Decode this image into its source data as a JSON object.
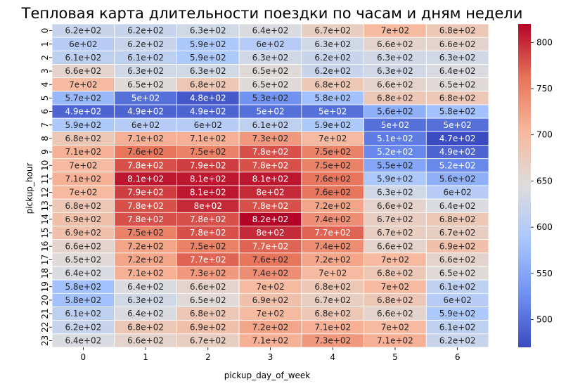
{
  "chart_data": {
    "type": "heatmap",
    "title": "Тепловая карта длительности поездки по часам и дням недели",
    "xlabel": "pickup_day_of_week",
    "ylabel": "pickup_hour",
    "x_categories": [
      "0",
      "1",
      "2",
      "3",
      "4",
      "5",
      "6"
    ],
    "y_categories": [
      "0",
      "1",
      "2",
      "3",
      "4",
      "5",
      "6",
      "7",
      "8",
      "9",
      "10",
      "11",
      "12",
      "13",
      "14",
      "15",
      "16",
      "17",
      "18",
      "19",
      "20",
      "21",
      "22",
      "23"
    ],
    "values": [
      [
        620,
        620,
        630,
        640,
        670,
        700,
        680
      ],
      [
        600,
        620,
        590,
        600,
        630,
        660,
        660
      ],
      [
        610,
        610,
        590,
        630,
        620,
        630,
        630
      ],
      [
        660,
        630,
        630,
        650,
        620,
        630,
        640
      ],
      [
        700,
        650,
        680,
        650,
        680,
        660,
        650
      ],
      [
        570,
        500,
        480,
        530,
        580,
        680,
        680
      ],
      [
        490,
        490,
        490,
        500,
        500,
        560,
        580
      ],
      [
        590,
        600,
        600,
        610,
        590,
        500,
        500
      ],
      [
        680,
        710,
        710,
        730,
        700,
        510,
        470
      ],
      [
        710,
        760,
        750,
        780,
        750,
        520,
        490
      ],
      [
        700,
        780,
        790,
        780,
        750,
        550,
        520
      ],
      [
        710,
        810,
        810,
        810,
        760,
        590,
        560
      ],
      [
        700,
        790,
        810,
        800,
        760,
        630,
        600
      ],
      [
        680,
        780,
        800,
        780,
        720,
        660,
        640
      ],
      [
        690,
        780,
        780,
        820,
        740,
        670,
        680
      ],
      [
        690,
        750,
        780,
        800,
        770,
        670,
        670
      ],
      [
        660,
        720,
        750,
        770,
        740,
        660,
        690
      ],
      [
        650,
        720,
        770,
        760,
        720,
        700,
        660
      ],
      [
        640,
        710,
        730,
        740,
        700,
        680,
        650
      ],
      [
        580,
        640,
        660,
        700,
        680,
        700,
        610
      ],
      [
        580,
        630,
        650,
        690,
        670,
        680,
        600
      ],
      [
        610,
        640,
        680,
        700,
        680,
        660,
        590
      ],
      [
        620,
        680,
        690,
        720,
        710,
        700,
        610
      ],
      [
        640,
        660,
        670,
        710,
        730,
        710,
        620
      ]
    ],
    "labels": [
      [
        "6.2e+02",
        "6.2e+02",
        "6.3e+02",
        "6.4e+02",
        "6.7e+02",
        "7e+02",
        "6.8e+02"
      ],
      [
        "6e+02",
        "6.2e+02",
        "5.9e+02",
        "6e+02",
        "6.3e+02",
        "6.6e+02",
        "6.6e+02"
      ],
      [
        "6.1e+02",
        "6.1e+02",
        "5.9e+02",
        "6.3e+02",
        "6.2e+02",
        "6.3e+02",
        "6.3e+02"
      ],
      [
        "6.6e+02",
        "6.3e+02",
        "6.3e+02",
        "6.5e+02",
        "6.2e+02",
        "6.3e+02",
        "6.4e+02"
      ],
      [
        "7e+02",
        "6.5e+02",
        "6.8e+02",
        "6.5e+02",
        "6.8e+02",
        "6.6e+02",
        "6.5e+02"
      ],
      [
        "5.7e+02",
        "5e+02",
        "4.8e+02",
        "5.3e+02",
        "5.8e+02",
        "6.8e+02",
        "6.8e+02"
      ],
      [
        "4.9e+02",
        "4.9e+02",
        "4.9e+02",
        "5e+02",
        "5e+02",
        "5.6e+02",
        "5.8e+02"
      ],
      [
        "5.9e+02",
        "6e+02",
        "6e+02",
        "6.1e+02",
        "5.9e+02",
        "5e+02",
        "5e+02"
      ],
      [
        "6.8e+02",
        "7.1e+02",
        "7.1e+02",
        "7.3e+02",
        "7e+02",
        "5.1e+02",
        "4.7e+02"
      ],
      [
        "7.1e+02",
        "7.6e+02",
        "7.5e+02",
        "7.8e+02",
        "7.5e+02",
        "5.2e+02",
        "4.9e+02"
      ],
      [
        "7e+02",
        "7.8e+02",
        "7.9e+02",
        "7.8e+02",
        "7.5e+02",
        "5.5e+02",
        "5.2e+02"
      ],
      [
        "7.1e+02",
        "8.1e+02",
        "8.1e+02",
        "8.1e+02",
        "7.6e+02",
        "5.9e+02",
        "5.6e+02"
      ],
      [
        "7e+02",
        "7.9e+02",
        "8.1e+02",
        "8e+02",
        "7.6e+02",
        "6.3e+02",
        "6e+02"
      ],
      [
        "6.8e+02",
        "7.8e+02",
        "8e+02",
        "7.8e+02",
        "7.2e+02",
        "6.6e+02",
        "6.4e+02"
      ],
      [
        "6.9e+02",
        "7.8e+02",
        "7.8e+02",
        "8.2e+02",
        "7.4e+02",
        "6.7e+02",
        "6.8e+02"
      ],
      [
        "6.9e+02",
        "7.5e+02",
        "7.8e+02",
        "8e+02",
        "7.7e+02",
        "6.7e+02",
        "6.7e+02"
      ],
      [
        "6.6e+02",
        "7.2e+02",
        "7.5e+02",
        "7.7e+02",
        "7.4e+02",
        "6.6e+02",
        "6.9e+02"
      ],
      [
        "6.5e+02",
        "7.2e+02",
        "7.7e+02",
        "7.6e+02",
        "7.2e+02",
        "7e+02",
        "6.6e+02"
      ],
      [
        "6.4e+02",
        "7.1e+02",
        "7.3e+02",
        "7.4e+02",
        "7e+02",
        "6.8e+02",
        "6.5e+02"
      ],
      [
        "5.8e+02",
        "6.4e+02",
        "6.6e+02",
        "7e+02",
        "6.8e+02",
        "7e+02",
        "6.1e+02"
      ],
      [
        "5.8e+02",
        "6.3e+02",
        "6.5e+02",
        "6.9e+02",
        "6.7e+02",
        "6.8e+02",
        "6e+02"
      ],
      [
        "6.1e+02",
        "6.4e+02",
        "6.8e+02",
        "7e+02",
        "6.8e+02",
        "6.6e+02",
        "5.9e+02"
      ],
      [
        "6.2e+02",
        "6.8e+02",
        "6.9e+02",
        "7.2e+02",
        "7.1e+02",
        "7e+02",
        "6.1e+02"
      ],
      [
        "6.4e+02",
        "6.6e+02",
        "6.7e+02",
        "7.1e+02",
        "7.3e+02",
        "7.1e+02",
        "6.2e+02"
      ]
    ],
    "colormap": "coolwarm",
    "colormap_stops": [
      "#3b4cc0",
      "#6f92f3",
      "#aac7fd",
      "#dddddd",
      "#f7b89c",
      "#e7745b",
      "#b40426"
    ],
    "vmin": 470,
    "vmax": 820,
    "colorbar_ticks": [
      500,
      550,
      600,
      650,
      700,
      750,
      800
    ],
    "colorbar_tick_labels": [
      "500",
      "550",
      "600",
      "650",
      "700",
      "750",
      "800"
    ],
    "grid": false,
    "legend": "colorbar-right"
  }
}
